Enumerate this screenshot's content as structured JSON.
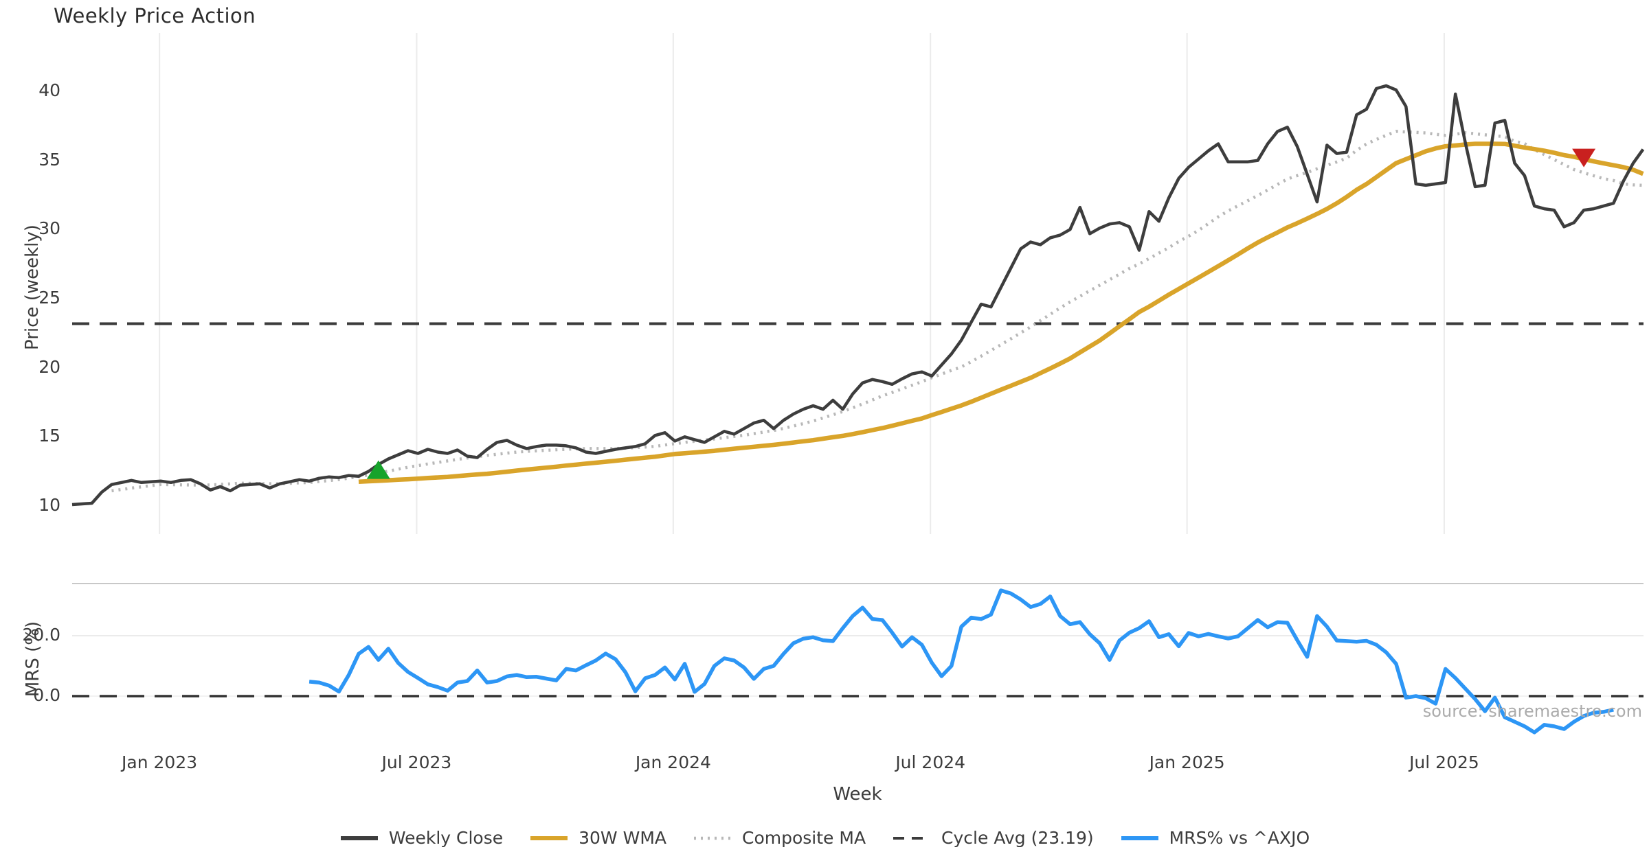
{
  "title": "Weekly Price Action",
  "source_note": "source: sharemaestro.com",
  "colors": {
    "weekly_close": "#3d3d3d",
    "wma": "#d9a42a",
    "composite": "#b8b8b8",
    "cycle_avg": "#3b3b3b",
    "mrs": "#2d96f5",
    "buy_marker": "#16a32b",
    "sell_marker": "#c9201f",
    "grid": "#ebebeb",
    "spine": "#c8c8c8"
  },
  "legend": [
    {
      "label": "Weekly Close",
      "color": "#3d3d3d",
      "dash": "",
      "width": 6
    },
    {
      "label": "30W WMA",
      "color": "#d9a42a",
      "dash": "",
      "width": 6
    },
    {
      "label": "Composite MA",
      "color": "#b8b8b8",
      "dash": "3 7",
      "width": 4.5
    },
    {
      "label": "Cycle Avg (23.19)",
      "color": "#3b3b3b",
      "dash": "16 11",
      "width": 4
    },
    {
      "label": "MRS% vs ^AXJO",
      "color": "#2d96f5",
      "dash": "",
      "width": 6
    }
  ],
  "chart_data": {
    "type": "line",
    "x": {
      "label": "Week",
      "tick_labels": [
        "Jan 2023",
        "Jul 2023",
        "Jan 2024",
        "Jul 2024",
        "Jan 2025",
        "Jul 2025"
      ],
      "tick_weeks": [
        8.84,
        34.87,
        60.84,
        86.87,
        112.84,
        138.87
      ],
      "total_weeks": 160
    },
    "panels": [
      {
        "id": "price",
        "ylabel": "Price (weekly)",
        "yticks": [
          10,
          15,
          20,
          25,
          30,
          35,
          40
        ],
        "ytick_labels": [
          "10",
          "15",
          "20",
          "25",
          "30",
          "35",
          "40"
        ],
        "ylim": [
          7.8,
          44.5
        ],
        "cycle_avg": 23.19,
        "grid": "vertical",
        "series": [
          {
            "name": "Weekly Close",
            "start_week": 0,
            "values": [
              10.1,
              10.15,
              10.2,
              11.0,
              11.55,
              11.7,
              11.85,
              11.7,
              11.75,
              11.8,
              11.7,
              11.85,
              11.9,
              11.6,
              11.15,
              11.4,
              11.1,
              11.5,
              11.55,
              11.6,
              11.3,
              11.6,
              11.75,
              11.9,
              11.8,
              12.0,
              12.1,
              12.05,
              12.2,
              12.15,
              12.5,
              13.0,
              13.4,
              13.7,
              14.0,
              13.8,
              14.1,
              13.9,
              13.8,
              14.05,
              13.6,
              13.5,
              14.1,
              14.6,
              14.75,
              14.4,
              14.15,
              14.3,
              14.4,
              14.4,
              14.35,
              14.2,
              13.9,
              13.8,
              13.95,
              14.1,
              14.2,
              14.3,
              14.5,
              15.1,
              15.3,
              14.7,
              15.0,
              14.8,
              14.6,
              15.0,
              15.4,
              15.2,
              15.6,
              16.0,
              16.2,
              15.6,
              16.2,
              16.65,
              17.0,
              17.25,
              17.0,
              17.65,
              17.0,
              18.1,
              18.9,
              19.15,
              19.0,
              18.8,
              19.2,
              19.55,
              19.7,
              19.4,
              20.2,
              21.0,
              22.0,
              23.3,
              24.6,
              24.4,
              25.8,
              27.2,
              28.6,
              29.1,
              28.9,
              29.4,
              29.6,
              30.0,
              31.6,
              29.7,
              30.1,
              30.4,
              30.5,
              30.2,
              28.5,
              31.3,
              30.6,
              32.3,
              33.7,
              34.5,
              35.1,
              35.7,
              36.2,
              34.9,
              34.9,
              34.9,
              35.0,
              36.2,
              37.1,
              37.4,
              36.0,
              34.0,
              32.0,
              36.1,
              35.5,
              35.6,
              38.3,
              38.7,
              40.2,
              40.4,
              40.1,
              38.9,
              33.3,
              33.2,
              33.3,
              33.4,
              39.8,
              36.3,
              33.1,
              33.2,
              37.7,
              37.9,
              34.8,
              33.9,
              31.7,
              31.5,
              31.4,
              30.2,
              30.5,
              31.4,
              31.5,
              31.7,
              31.9,
              33.5,
              34.8,
              35.8
            ]
          },
          {
            "name": "30W WMA",
            "start_week": 29,
            "values": [
              11.75,
              11.79,
              11.82,
              11.86,
              11.9,
              11.93,
              11.97,
              12.02,
              12.06,
              12.1,
              12.16,
              12.22,
              12.28,
              12.33,
              12.4,
              12.48,
              12.56,
              12.63,
              12.7,
              12.77,
              12.84,
              12.92,
              12.99,
              13.06,
              13.13,
              13.2,
              13.27,
              13.35,
              13.42,
              13.49,
              13.56,
              13.66,
              13.76,
              13.81,
              13.87,
              13.93,
              13.99,
              14.07,
              14.14,
              14.21,
              14.28,
              14.35,
              14.42,
              14.5,
              14.59,
              14.68,
              14.76,
              14.87,
              14.97,
              15.07,
              15.2,
              15.34,
              15.49,
              15.63,
              15.8,
              15.98,
              16.16,
              16.33,
              16.57,
              16.8,
              17.04,
              17.27,
              17.54,
              17.83,
              18.12,
              18.41,
              18.69,
              18.98,
              19.27,
              19.61,
              19.95,
              20.3,
              20.67,
              21.11,
              21.54,
              21.97,
              22.48,
              23.0,
              23.51,
              24.03,
              24.42,
              24.85,
              25.29,
              25.7,
              26.11,
              26.52,
              26.93,
              27.35,
              27.77,
              28.2,
              28.64,
              29.06,
              29.43,
              29.79,
              30.15,
              30.46,
              30.79,
              31.13,
              31.49,
              31.9,
              32.36,
              32.87,
              33.29,
              33.79,
              34.3,
              34.8,
              35.09,
              35.37,
              35.66,
              35.87,
              36.02,
              36.08,
              36.15,
              36.2,
              36.2,
              36.2,
              36.19,
              36.06,
              35.93,
              35.82,
              35.7,
              35.55,
              35.38,
              35.26,
              35.1,
              34.93,
              34.79,
              34.65,
              34.51,
              34.32,
              34.03
            ]
          },
          {
            "name": "Composite MA",
            "start_week": 4,
            "values": [
              11.1,
              11.19,
              11.29,
              11.38,
              11.47,
              11.55,
              11.54,
              11.53,
              11.52,
              11.51,
              11.52,
              11.56,
              11.6,
              11.65,
              11.64,
              11.62,
              11.61,
              11.61,
              11.64,
              11.67,
              11.7,
              11.77,
              11.84,
              11.91,
              12.01,
              12.12,
              12.24,
              12.38,
              12.52,
              12.66,
              12.8,
              12.92,
              13.04,
              13.15,
              13.26,
              13.37,
              13.47,
              13.57,
              13.66,
              13.74,
              13.82,
              13.9,
              13.95,
              13.99,
              14.03,
              14.07,
              14.1,
              14.13,
              14.15,
              14.15,
              14.15,
              14.15,
              14.18,
              14.22,
              14.26,
              14.31,
              14.41,
              14.51,
              14.6,
              14.68,
              14.77,
              14.85,
              14.94,
              15.03,
              15.11,
              15.23,
              15.35,
              15.46,
              15.61,
              15.78,
              15.96,
              16.14,
              16.37,
              16.6,
              16.83,
              17.1,
              17.38,
              17.67,
              17.96,
              18.21,
              18.47,
              18.73,
              18.99,
              19.28,
              19.54,
              19.81,
              20.06,
              20.44,
              20.84,
              21.25,
              21.66,
              22.09,
              22.52,
              22.95,
              23.41,
              23.87,
              24.33,
              24.76,
              25.17,
              25.57,
              25.97,
              26.37,
              26.77,
              27.18,
              27.51,
              27.9,
              28.3,
              28.69,
              29.13,
              29.52,
              29.93,
              30.43,
              30.92,
              31.35,
              31.72,
              32.09,
              32.46,
              32.86,
              33.26,
              33.65,
              33.9,
              34.13,
              34.39,
              34.64,
              34.89,
              35.16,
              35.73,
              36.19,
              36.52,
              36.81,
              37.1,
              37.06,
              37.03,
              36.99,
              36.89,
              36.81,
              36.89,
              37.0,
              36.93,
              36.85,
              36.78,
              36.72,
              36.39,
              36.22,
              35.78,
              35.42,
              35.06,
              34.7,
              34.34,
              34.11,
              33.89,
              33.68,
              33.55,
              33.3,
              33.23,
              33.2
            ]
          }
        ],
        "markers": [
          {
            "type": "buy-triangle-up",
            "week": 31,
            "value": 12.6
          },
          {
            "type": "sell-triangle-down",
            "week": 153,
            "value": 35.2
          }
        ]
      },
      {
        "id": "mrs",
        "ylabel": "MRS (%)",
        "yticks": [
          0,
          20
        ],
        "ytick_labels": [
          "0.0",
          "20.0"
        ],
        "ylim": [
          -16,
          37.3
        ],
        "zero_line": 0,
        "series": [
          {
            "name": "MRS% vs ^AXJO",
            "start_week": 24,
            "values": [
              4.8,
              4.5,
              3.5,
              1.5,
              7.0,
              14.0,
              16.3,
              12.0,
              15.7,
              11.0,
              8.0,
              6.0,
              3.9,
              3.0,
              1.8,
              4.5,
              5.0,
              8.5,
              4.5,
              5.0,
              6.5,
              7.0,
              6.3,
              6.4,
              5.8,
              5.2,
              9.0,
              8.5,
              10.2,
              11.8,
              14.1,
              12.2,
              7.9,
              1.6,
              5.9,
              7.0,
              9.5,
              5.5,
              10.7,
              1.4,
              4.0,
              10.0,
              12.5,
              11.8,
              9.5,
              5.7,
              9.0,
              10.0,
              14.0,
              17.5,
              19.0,
              19.5,
              18.5,
              18.2,
              22.5,
              26.5,
              29.3,
              25.5,
              25.2,
              21.0,
              16.4,
              19.5,
              17.0,
              11.1,
              6.6,
              10.0,
              23.0,
              26.0,
              25.5,
              27.0,
              35.0,
              34.0,
              32.0,
              29.5,
              30.5,
              33.0,
              26.5,
              23.8,
              24.5,
              20.5,
              17.5,
              12.0,
              18.4,
              21.0,
              22.5,
              24.8,
              19.5,
              20.5,
              16.5,
              20.9,
              19.8,
              20.6,
              19.8,
              19.1,
              19.8,
              22.5,
              25.2,
              22.8,
              24.5,
              24.3,
              18.5,
              13.0,
              26.5,
              23.0,
              18.4,
              18.2,
              18.0,
              18.3,
              17.0,
              14.5,
              10.7,
              -0.5,
              0.0,
              -0.7,
              -2.5,
              9.0,
              6.0,
              2.5,
              -1.0,
              -5.0,
              -0.5,
              -7.0,
              -8.5,
              -10.0,
              -12.0,
              -9.5,
              -10.0,
              -10.9,
              -8.5,
              -6.6,
              -5.5,
              -5.2,
              -4.5
            ]
          }
        ]
      }
    ]
  }
}
